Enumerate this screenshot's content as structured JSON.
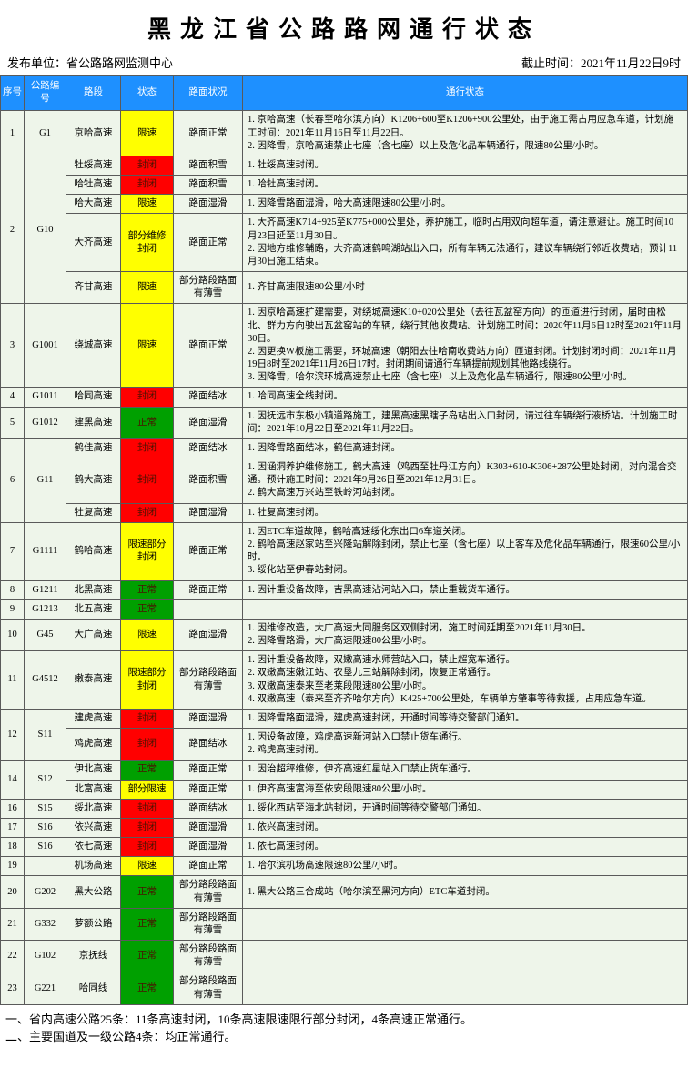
{
  "title": "黑龙江省公路路网通行状态",
  "publisher_label": "发布单位：省公路路网监测中心",
  "deadline_label": "截止时间：",
  "deadline_value": "2021年11月22日9时",
  "headers": {
    "no": "序号",
    "code": "公路编号",
    "section": "路段",
    "status": "状态",
    "surface": "路面状况",
    "detail": "通行状态"
  },
  "status_colors": {
    "限速": "#ffff00",
    "封闭": "#ff0000",
    "部分维修封闭": "#ffff00",
    "正常": "#00a000",
    "限速部分封闭": "#ffff00",
    "部分限速": "#ffff00"
  },
  "rows": [
    {
      "no": "1",
      "code": "G1",
      "section": "京哈高速",
      "status": "限速",
      "surface": "路面正常",
      "detail": "1. 京哈高速（长春至哈尔滨方向）K1206+600至K1206+900公里处，由于施工需占用应急车道，计划施工时间：2021年11月16日至11月22日。\n2. 因降雪，京哈高速禁止七座（含七座）以上及危化品车辆通行，限速80公里/小时。"
    },
    {
      "no": "2",
      "code": "G10",
      "sections": [
        {
          "section": "牡绥高速",
          "status": "封闭",
          "surface": "路面积雪",
          "detail": "1. 牡绥高速封闭。"
        },
        {
          "section": "哈牡高速",
          "status": "封闭",
          "surface": "路面积雪",
          "detail": "1. 哈牡高速封闭。"
        },
        {
          "section": "哈大高速",
          "status": "限速",
          "surface": "路面湿滑",
          "detail": "1. 因降雪路面湿滑，哈大高速限速80公里/小时。"
        },
        {
          "section": "大齐高速",
          "status": "部分维修封闭",
          "surface": "路面正常",
          "detail": "1. 大齐高速K714+925至K775+000公里处，养护施工，临时占用双向超车道，请注意避让。施工时间10月23日延至11月30日。\n2. 因地方维修辅路，大齐高速鹤鸣湖站出入口，所有车辆无法通行，建议车辆绕行邻近收费站，预计11月30日施工结束。"
        },
        {
          "section": "齐甘高速",
          "status": "限速",
          "surface": "部分路段路面有薄雪",
          "detail": "1. 齐甘高速限速80公里/小时"
        }
      ]
    },
    {
      "no": "3",
      "code": "G1001",
      "section": "绕城高速",
      "status": "限速",
      "surface": "路面正常",
      "detail": "1. 因京哈高速扩建需要，对绕城高速K10+020公里处（去往瓦盆窑方向）的匝道进行封闭，届时由松北、群力方向驶出瓦盆窑站的车辆，绕行其他收费站。计划施工时间：2020年11月6日12时至2021年11月30日。\n2. 因更换W板施工需要，环城高速（朝阳去往哈南收费站方向）匝道封闭。计划封闭时间：2021年11月19日8时至2021年11月26日17时。封闭期间请通行车辆提前规划其他路线绕行。\n3. 因降雪，哈尔滨环城高速禁止七座（含七座）以上及危化品车辆通行，限速80公里/小时。"
    },
    {
      "no": "4",
      "code": "G1011",
      "section": "哈同高速",
      "status": "封闭",
      "surface": "路面结冰",
      "detail": "1. 哈同高速全线封闭。"
    },
    {
      "no": "5",
      "code": "G1012",
      "section": "建黑高速",
      "status": "正常",
      "surface": "路面湿滑",
      "detail": "1. 因抚远市东极小镇道路施工，建黑高速黑瞎子岛站出入口封闭，请过往车辆绕行液桥站。计划施工时间：2021年10月22日至2021年11月22日。"
    },
    {
      "no": "6",
      "code": "G11",
      "sections": [
        {
          "section": "鹤佳高速",
          "status": "封闭",
          "surface": "路面结冰",
          "detail": "1. 因降雪路面结冰，鹤佳高速封闭。"
        },
        {
          "section": "鹤大高速",
          "status": "封闭",
          "surface": "路面积雪",
          "detail": "1. 因涵洞养护维修施工，鹤大高速（鸡西至牡丹江方向）K303+610-K306+287公里处封闭，对向混合交通。预计施工时间：2021年9月26日至2021年12月31日。\n2. 鹤大高速万兴站至铁岭河站封闭。"
        },
        {
          "section": "牡复高速",
          "status": "封闭",
          "surface": "路面湿滑",
          "detail": "1. 牡复高速封闭。"
        }
      ]
    },
    {
      "no": "7",
      "code": "G1111",
      "section": "鹤哈高速",
      "status": "限速部分封闭",
      "surface": "路面正常",
      "detail": "1. 因ETC车道故障，鹤哈高速绥化东出口6车道关闭。\n2. 鹤哈高速赵家站至兴隆站解除封闭，禁止七座（含七座）以上客车及危化品车辆通行，限速60公里/小时。\n3. 绥化站至伊春站封闭。"
    },
    {
      "no": "8",
      "code": "G1211",
      "section": "北黑高速",
      "status": "正常",
      "surface": "路面正常",
      "detail": "1. 因计重设备故障，吉黑高速沾河站入口，禁止重载货车通行。"
    },
    {
      "no": "9",
      "code": "G1213",
      "section": "北五高速",
      "status": "正常",
      "surface": "",
      "detail": ""
    },
    {
      "no": "10",
      "code": "G45",
      "section": "大广高速",
      "status": "限速",
      "surface": "路面湿滑",
      "detail": "1. 因维修改造，大广高速大同服务区双侧封闭，施工时间延期至2021年11月30日。\n2. 因降雪路滑，大广高速限速80公里/小时。"
    },
    {
      "no": "11",
      "code": "G4512",
      "section": "嫩泰高速",
      "status": "限速部分封闭",
      "surface": "部分路段路面有薄雪",
      "detail": "1. 因计重设备故障，双嫩高速水师营站入口，禁止超宽车通行。\n2. 双嫩高速嫩江站、农垦九三站解除封闭，恢复正常通行。\n3. 双嫩高速泰来至老莱段限速80公里/小时。\n4. 双嫩高速（泰来至齐齐哈尔方向）K425+700公里处，车辆单方肇事等待救援，占用应急车道。"
    },
    {
      "no": "12",
      "code": "S11",
      "sections": [
        {
          "section": "建虎高速",
          "status": "封闭",
          "surface": "路面湿滑",
          "detail": "1. 因降雪路面湿滑，建虎高速封闭，开通时间等待交警部门通知。"
        },
        {
          "section": "鸡虎高速",
          "status": "封闭",
          "surface": "路面结冰",
          "detail": "1. 因设备故障，鸡虎高速新河站入口禁止货车通行。\n2. 鸡虎高速封闭。"
        }
      ]
    },
    {
      "no": "14",
      "code": "S12",
      "sections": [
        {
          "section": "伊北高速",
          "status": "正常",
          "surface": "路面正常",
          "detail": "1. 因治超秤维修，伊齐高速红星站入口禁止货车通行。"
        },
        {
          "section": "北富高速",
          "status": "部分限速",
          "surface": "路面正常",
          "detail": "1. 伊齐高速富海至依安段限速80公里/小时。"
        }
      ]
    },
    {
      "no": "16",
      "code": "S15",
      "section": "绥北高速",
      "status": "封闭",
      "surface": "路面结冰",
      "detail": "1. 绥化西站至海北站封闭，开通时间等待交警部门通知。"
    },
    {
      "no": "17",
      "code": "S16",
      "section": "依兴高速",
      "status": "封闭",
      "surface": "路面湿滑",
      "detail": "1. 依兴高速封闭。"
    },
    {
      "no": "18",
      "code": "S16",
      "section": "依七高速",
      "status": "封闭",
      "surface": "路面湿滑",
      "detail": "1. 依七高速封闭。"
    },
    {
      "no": "19",
      "code": "",
      "section": "机场高速",
      "status": "限速",
      "surface": "路面正常",
      "detail": "1. 哈尔滨机场高速限速80公里/小时。"
    },
    {
      "no": "20",
      "code": "G202",
      "section": "黑大公路",
      "status": "正常",
      "surface": "部分路段路面有薄雪",
      "detail": "1. 黑大公路三合成站（哈尔滨至黑河方向）ETC车道封闭。"
    },
    {
      "no": "21",
      "code": "G332",
      "section": "萝额公路",
      "status": "正常",
      "surface": "部分路段路面有薄雪",
      "detail": ""
    },
    {
      "no": "22",
      "code": "G102",
      "section": "京抚线",
      "status": "正常",
      "surface": "部分路段路面有薄雪",
      "detail": ""
    },
    {
      "no": "23",
      "code": "G221",
      "section": "哈同线",
      "status": "正常",
      "surface": "部分路段路面有薄雪",
      "detail": ""
    }
  ],
  "footer_lines": [
    "一、省内高速公路25条：11条高速封闭，10条高速限速限行部分封闭，4条高速正常通行。",
    "二、主要国道及一级公路4条：均正常通行。"
  ]
}
